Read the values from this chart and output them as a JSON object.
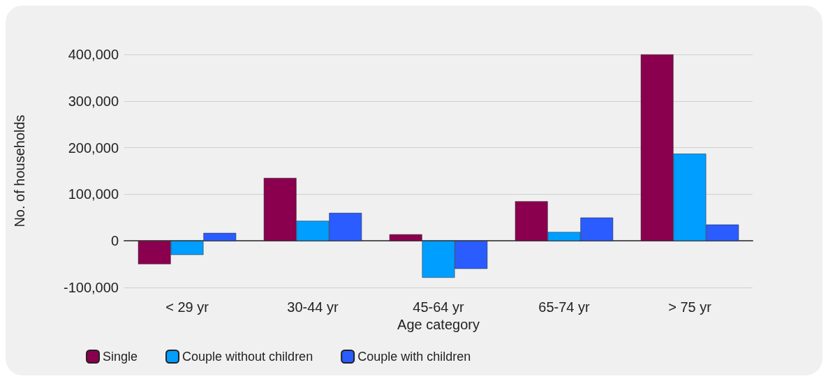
{
  "chart_data": {
    "type": "bar",
    "xlabel": "Age category",
    "ylabel": "No. of households",
    "categories": [
      "< 29 yr",
      "30-44 yr",
      "45-64 yr",
      "65-74 yr",
      "> 75 yr"
    ],
    "series": [
      {
        "name": "Single",
        "color": "#8a004f",
        "values": [
          -50000,
          135000,
          14000,
          85000,
          400000
        ]
      },
      {
        "name": "Couple without children",
        "color": "#009eff",
        "values": [
          -30000,
          43000,
          -79000,
          19000,
          187000
        ]
      },
      {
        "name": "Couple with children",
        "color": "#2a5cff",
        "values": [
          17000,
          60000,
          -60000,
          50000,
          35000
        ]
      }
    ],
    "ylim": [
      -100000,
      400000
    ],
    "yticks": [
      {
        "value": -100000,
        "label": "-100,000"
      },
      {
        "value": 0,
        "label": "0"
      },
      {
        "value": 100000,
        "label": "100,000"
      },
      {
        "value": 200000,
        "label": "200,000"
      },
      {
        "value": 300000,
        "label": "300,000"
      },
      {
        "value": 400000,
        "label": "400,000"
      }
    ],
    "grid": "y",
    "legend": "bottom left"
  }
}
